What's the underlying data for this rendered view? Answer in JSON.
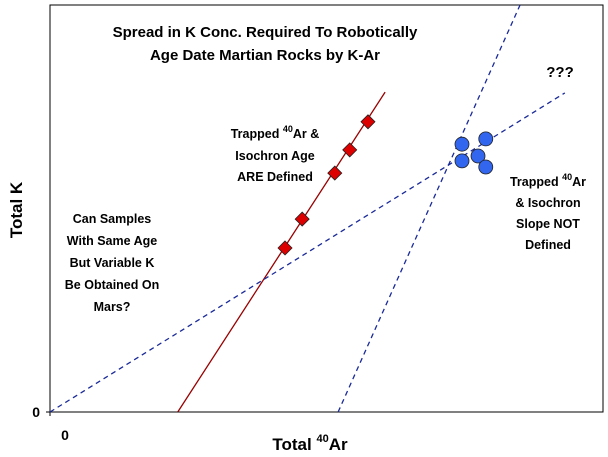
{
  "chart_data": {
    "type": "scatter",
    "title": [
      "Spread in K Conc. Required To Robotically",
      "Age Date Martian Rocks by K-Ar"
    ],
    "xlabel": [
      "Total ",
      "40",
      "Ar"
    ],
    "ylabel": "Total  K",
    "xlim": [
      0,
      100
    ],
    "ylim": [
      0,
      100
    ],
    "xticks": [
      0
    ],
    "yticks": [
      0
    ],
    "series": [
      {
        "color": "#dd0000",
        "marker": "diamond",
        "x": [
          42.5,
          45.6,
          51.5,
          54.2,
          57.5
        ],
        "values": [
          40.3,
          47.4,
          58.7,
          64.4,
          71.3
        ]
      },
      {
        "color": "#3366ee",
        "marker": "circle",
        "x": [
          74.5,
          78.8,
          74.5,
          77.4,
          78.8
        ],
        "values": [
          65.8,
          67.1,
          61.7,
          62.9,
          60.2
        ]
      }
    ],
    "lines": [
      {
        "color": "#990000",
        "dashed": false,
        "x": [
          23.1,
          60.6
        ],
        "values": [
          0,
          78.6
        ]
      },
      {
        "color": "#1a2a99",
        "dashed": true,
        "x": [
          0,
          93.1
        ],
        "values": [
          0,
          78.4
        ]
      },
      {
        "color": "#1a2a99",
        "dashed": true,
        "x": [
          52.1,
          85.0
        ],
        "values": [
          0,
          100
        ]
      }
    ],
    "annotations": [
      {
        "lines": [
          [
            "???"
          ]
        ]
      },
      {
        "lines": [
          [
            "Trapped ",
            "40",
            "Ar &"
          ],
          [
            "Isochron Age"
          ],
          [
            "ARE Defined"
          ]
        ]
      },
      {
        "lines": [
          [
            "Trapped ",
            "40",
            "Ar"
          ],
          [
            "& Isochron"
          ],
          [
            "Slope NOT"
          ],
          [
            "Defined"
          ]
        ]
      },
      {
        "lines": [
          [
            "Can Samples"
          ],
          [
            "With Same Age"
          ],
          [
            "But Variable K"
          ],
          [
            "Be Obtained On"
          ],
          [
            "Mars?"
          ]
        ]
      }
    ]
  }
}
